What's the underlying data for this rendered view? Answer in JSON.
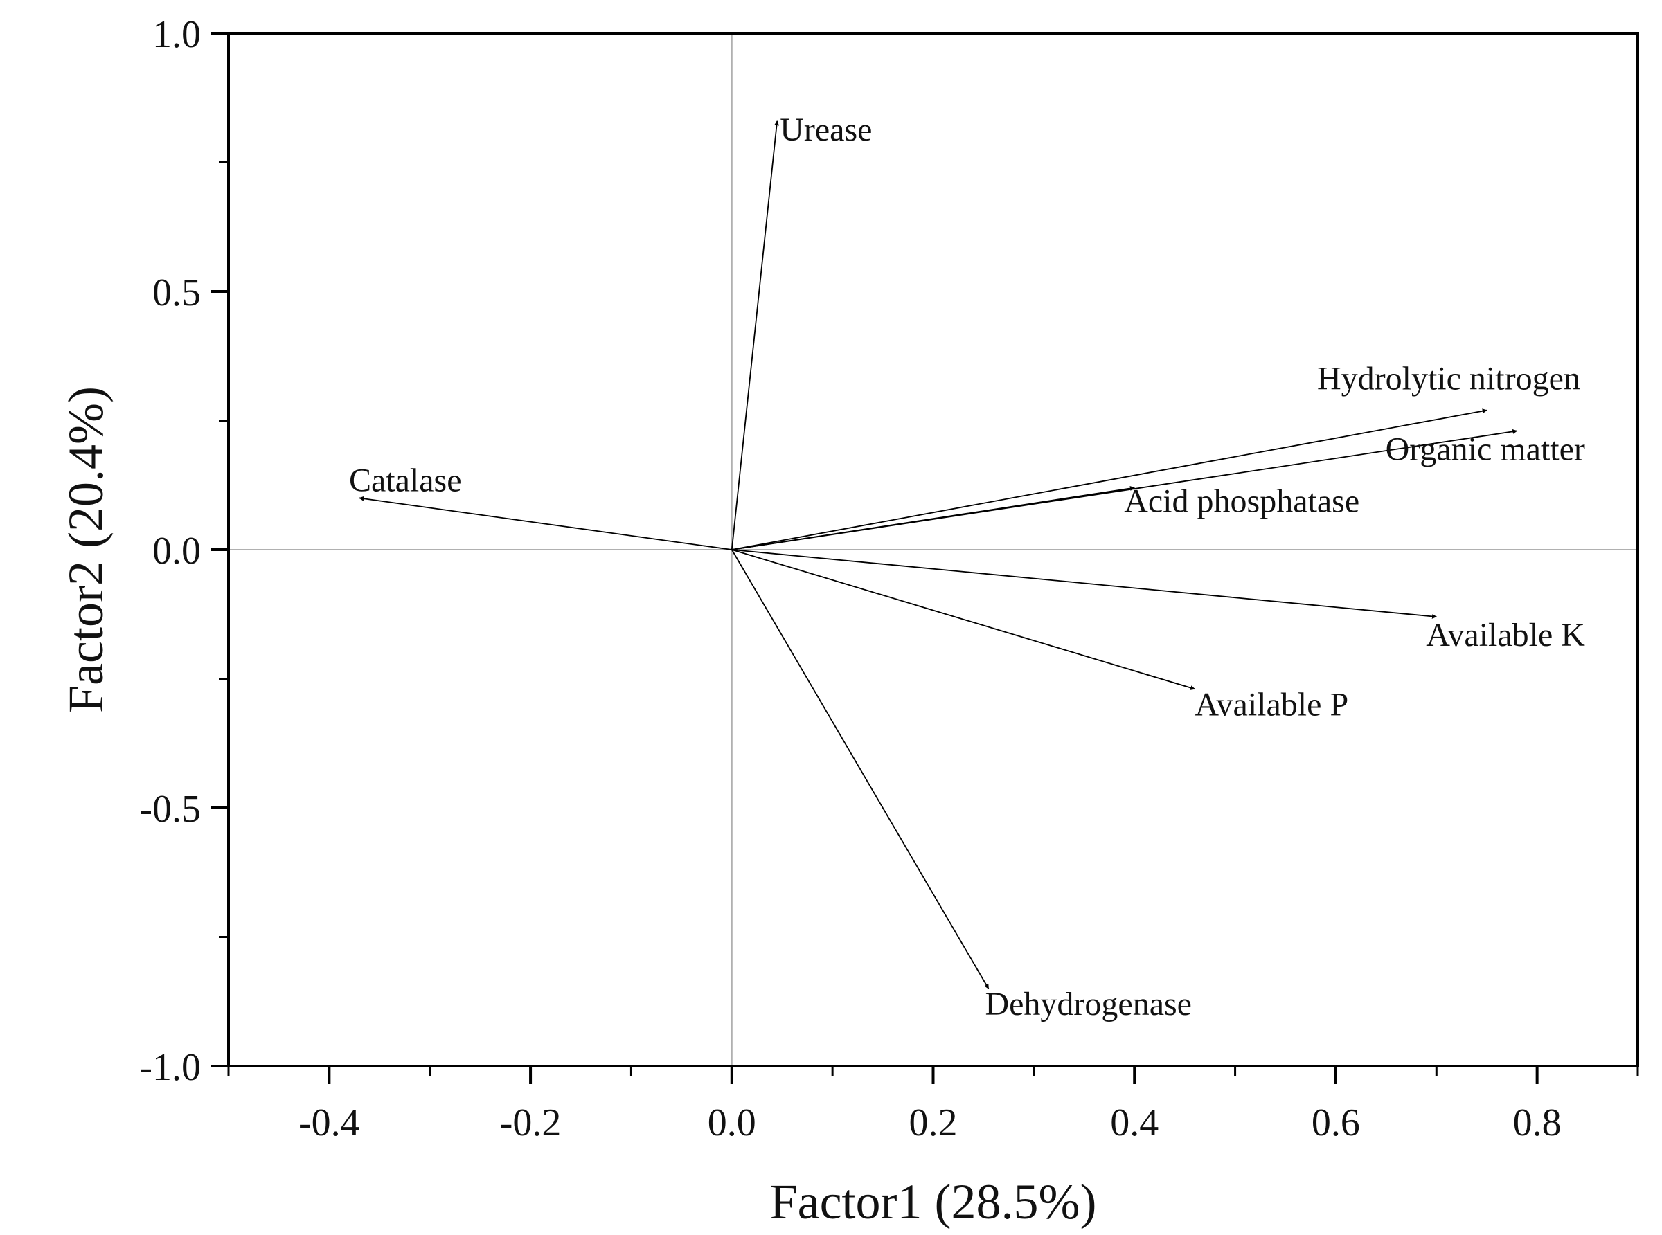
{
  "chart_data": {
    "type": "scatter",
    "subtype": "biplot-vectors",
    "title": "",
    "xlabel": "Factor1 (28.5%)",
    "ylabel": "Factor2 (20.4%)",
    "xlim": [
      -0.5,
      0.9
    ],
    "ylim": [
      -1.0,
      1.0
    ],
    "xticks": [
      -0.4,
      -0.2,
      0.0,
      0.2,
      0.4,
      0.6,
      0.8
    ],
    "xtick_labels": [
      "-0.4",
      "-0.2",
      "0.0",
      "0.2",
      "0.4",
      "0.6",
      "0.8"
    ],
    "yticks": [
      -1.0,
      -0.5,
      0.0,
      0.5,
      1.0
    ],
    "ytick_labels": [
      "-1.0",
      "-0.5",
      "0.0",
      "0.5",
      "1.0"
    ],
    "reference_lines": {
      "x": 0,
      "y": 0
    },
    "grid": false,
    "legend": "none",
    "origin": [
      0,
      0
    ],
    "vectors": [
      {
        "name": "Urease",
        "x": 0.045,
        "y": 0.83
      },
      {
        "name": "Hydrolytic nitrogen",
        "x": 0.75,
        "y": 0.27
      },
      {
        "name": "Organic matter",
        "x": 0.78,
        "y": 0.23
      },
      {
        "name": "Acid phosphatase",
        "x": 0.4,
        "y": 0.12
      },
      {
        "name": "Catalase",
        "x": -0.37,
        "y": 0.1
      },
      {
        "name": "Available K",
        "x": 0.7,
        "y": -0.13
      },
      {
        "name": "Available P",
        "x": 0.46,
        "y": -0.27
      },
      {
        "name": "Dehydrogenase",
        "x": 0.255,
        "y": -0.85
      }
    ],
    "colors": {
      "axis": "#000000",
      "reference": "#b0b0b0",
      "vector": "#000000"
    }
  }
}
